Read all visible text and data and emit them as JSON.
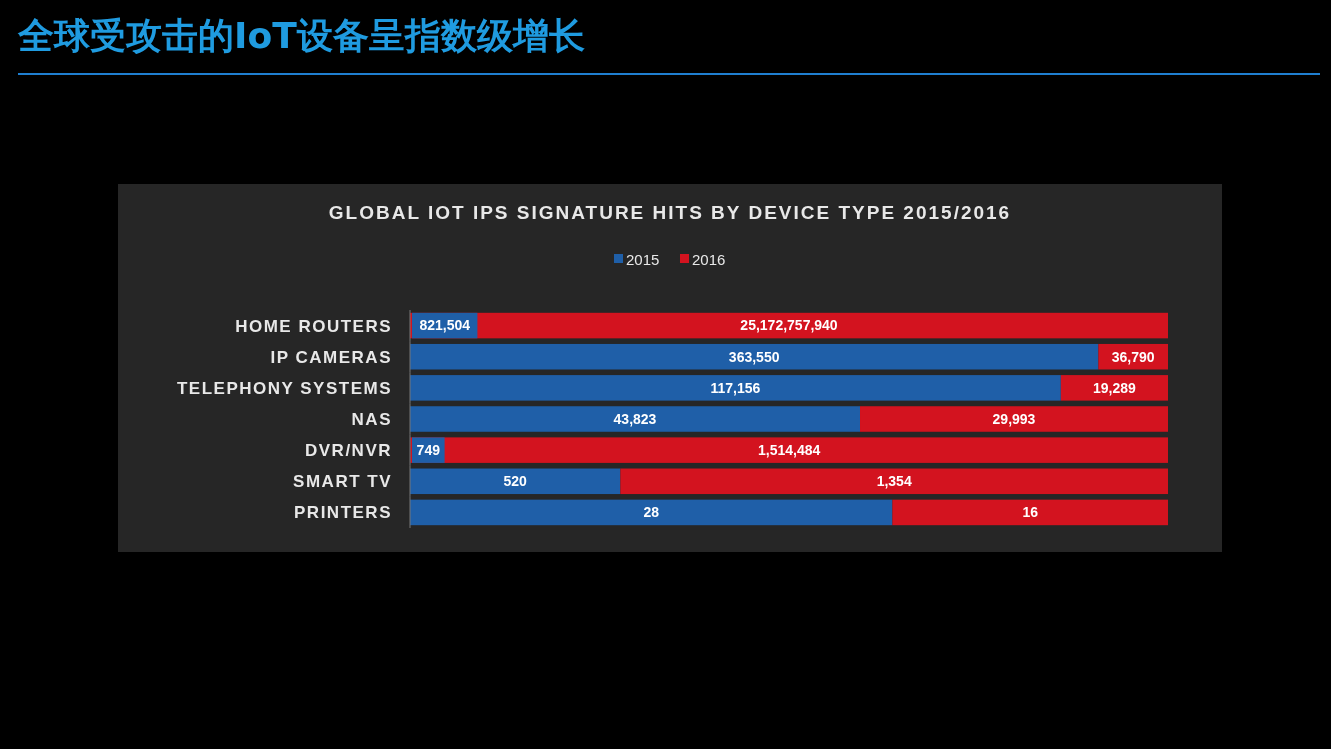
{
  "chart_data": [
    {
      "type": "bar",
      "orientation": "horizontal",
      "stacked": true,
      "title": "全球受攻击的IoT设备呈指数级增长",
      "subtitle": "GLOBAL IOT IPS SIGNATURE HITS BY DEVICE TYPE 2015/2016",
      "categories": [
        "HOME ROUTERS"
      ],
      "legend": "top",
      "tick_labels": "y",
      "series": [
        {
          "name": "2015",
          "color": "#1f5fa8",
          "values": [
            821504
          ],
          "value_labels": [
            "821,504"
          ]
        },
        {
          "name": "2016",
          "color": "#d3131f",
          "values": [
            25172757940
          ],
          "value_labels": [
            "25,172,757,940"
          ]
        }
      ]
    },
    {
      "type": "bar",
      "orientation": "horizontal",
      "stacked": true,
      "categories": [
        "IP CAMERAS"
      ],
      "tick_labels": "y",
      "series": [
        {
          "color": "#1f5fa8",
          "values": [
            363550
          ],
          "value_labels": [
            "363,550"
          ]
        },
        {
          "color": "#d3131f",
          "values": [
            36790
          ],
          "value_labels": [
            "36,790"
          ]
        }
      ]
    },
    {
      "type": "bar",
      "orientation": "horizontal",
      "stacked": true,
      "categories": [
        "TELEPHONY SYSTEMS"
      ],
      "tick_labels": "y",
      "series": [
        {
          "color": "#1f5fa8",
          "values": [
            117156
          ],
          "value_labels": [
            "117,156"
          ]
        },
        {
          "color": "#d3131f",
          "values": [
            19289
          ],
          "value_labels": [
            "19,289"
          ]
        }
      ]
    },
    {
      "type": "bar",
      "orientation": "horizontal",
      "stacked": true,
      "categories": [
        "NAS"
      ],
      "tick_labels": "y",
      "series": [
        {
          "color": "#1f5fa8",
          "values": [
            43823
          ],
          "value_labels": [
            "43,823"
          ]
        },
        {
          "color": "#d3131f",
          "values": [
            29993
          ],
          "value_labels": [
            "29,993"
          ]
        }
      ]
    },
    {
      "type": "bar",
      "orientation": "horizontal",
      "stacked": true,
      "categories": [
        "DVR/NVR"
      ],
      "tick_labels": "y",
      "series": [
        {
          "color": "#1f5fa8",
          "values": [
            749
          ],
          "value_labels": [
            "749"
          ]
        },
        {
          "color": "#d3131f",
          "values": [
            1514484
          ],
          "value_labels": [
            "1,514,484"
          ]
        }
      ]
    },
    {
      "type": "bar",
      "orientation": "horizontal",
      "stacked": true,
      "categories": [
        "SMART TV"
      ],
      "tick_labels": "y",
      "series": [
        {
          "color": "#1f5fa8",
          "values": [
            520
          ],
          "value_labels": [
            "520"
          ]
        },
        {
          "color": "#d3131f",
          "values": [
            1354
          ],
          "value_labels": [
            "1,354"
          ]
        }
      ]
    },
    {
      "type": "bar",
      "orientation": "horizontal",
      "stacked": true,
      "categories": [
        "PRINTERS"
      ],
      "tick_labels": "y",
      "series": [
        {
          "color": "#1f5fa8",
          "values": [
            28
          ],
          "value_labels": [
            "28"
          ]
        },
        {
          "color": "#d3131f",
          "values": [
            16
          ],
          "value_labels": [
            "16"
          ]
        }
      ]
    }
  ]
}
